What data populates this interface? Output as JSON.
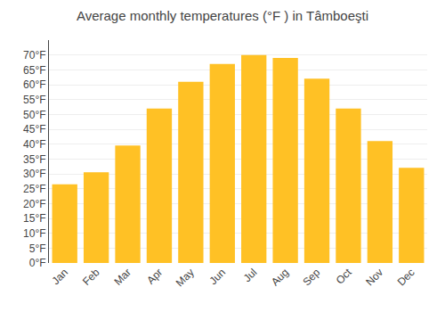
{
  "chart_data": {
    "type": "bar",
    "title": "Average monthly temperatures (°F ) in Tâmboeşti",
    "categories": [
      "Jan",
      "Feb",
      "Mar",
      "Apr",
      "May",
      "Jun",
      "Jul",
      "Aug",
      "Sep",
      "Oct",
      "Nov",
      "Dec"
    ],
    "values": [
      26.5,
      30.5,
      39.5,
      52.0,
      61.0,
      67.0,
      70.0,
      69.0,
      62.0,
      52.0,
      41.0,
      32.0
    ],
    "color": "#FFC125",
    "ylim": [
      0,
      75
    ],
    "yticks": [
      {
        "value": 0,
        "label": "0°F"
      },
      {
        "value": 5,
        "label": "5°F"
      },
      {
        "value": 10,
        "label": "10°F"
      },
      {
        "value": 15,
        "label": "15°F"
      },
      {
        "value": 20,
        "label": "20°F"
      },
      {
        "value": 25,
        "label": "25°F"
      },
      {
        "value": 30,
        "label": "30°F"
      },
      {
        "value": 35,
        "label": "35°F"
      },
      {
        "value": 40,
        "label": "40°F"
      },
      {
        "value": 45,
        "label": "45°F"
      },
      {
        "value": 50,
        "label": "50°F"
      },
      {
        "value": 55,
        "label": "55°F"
      },
      {
        "value": 60,
        "label": "60°F"
      },
      {
        "value": 65,
        "label": "65°F"
      },
      {
        "value": 70,
        "label": "70°F"
      }
    ],
    "grid": true
  }
}
